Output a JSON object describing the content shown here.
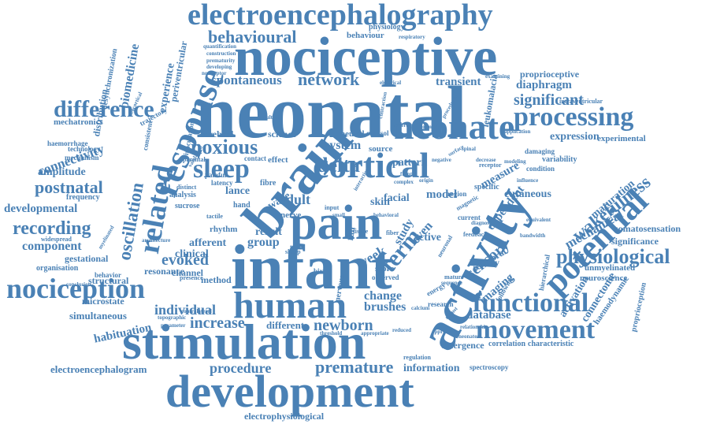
{
  "color": "#4a81b5",
  "words": [
    "electroencephalography",
    "nociceptive",
    "neonatal",
    "behavioural",
    "behaviour",
    "physiology",
    "respiratory",
    "quantification",
    "construction",
    "prematurity",
    "developing",
    "nociceptor",
    "periventricular",
    "desynchronization",
    "biomedicine",
    "experience",
    "response",
    "spontaneous",
    "network",
    "transient",
    "leukomalacia",
    "proprioceptive",
    "diaphragm",
    "significant",
    "intraventricular",
    "difference",
    "processing",
    "expression",
    "mechatronics",
    "distribution",
    "haemorrhage",
    "connectivity",
    "amplitude",
    "related",
    "sleep",
    "noxious",
    "cerebral",
    "science",
    "system",
    "brain",
    "neonate",
    "cortical",
    "delta",
    "pattern",
    "wakefulness",
    "maturation",
    "postnatal",
    "oscillation",
    "developmental",
    "frequency",
    "recording",
    "component",
    "gestational",
    "organisation",
    "nociception",
    "evoked",
    "clinical",
    "afferent",
    "resonance",
    "channel",
    "method",
    "pain",
    "infant",
    "human",
    "activity",
    "potential",
    "term",
    "sensory",
    "imaging",
    "mechanical",
    "physiological",
    "somatosensation",
    "significance",
    "activation",
    "connectome",
    "haemodynamic",
    "proprioception",
    "structural",
    "microstate",
    "simultaneous",
    "individual",
    "habituation",
    "increase",
    "different",
    "newborn",
    "brushes",
    "change",
    "database",
    "functional",
    "movement",
    "stimulation",
    "procedure",
    "premature",
    "information",
    "electroencephalogram",
    "development",
    "electrophysiological",
    "spectroscopy",
    "emergence",
    "correlation",
    "characteristic",
    "neuroscience",
    "unmyelinated",
    "experimental",
    "cutaneous",
    "measure",
    "variability",
    "dependent",
    "temporal",
    "healthy",
    "adult",
    "skin",
    "facial",
    "model",
    "region",
    "even",
    "active",
    "current",
    "study",
    "fibre",
    "wave",
    "lance",
    "hand",
    "nerve",
    "result",
    "group",
    "week",
    "score",
    "full",
    "rhythm",
    "tactile",
    "painful",
    "latency",
    "analysis",
    "sucrose",
    "distinct",
    "parental",
    "effect",
    "neural",
    "contact",
    "cortisol",
    "source",
    "mechanism",
    "technology",
    "consistent",
    "trajectory",
    "inoculation",
    "neocortical",
    "electrical",
    "multiple",
    "contraction",
    "severity",
    "primary",
    "procedural",
    "specific",
    "condition",
    "damaging",
    "application",
    "examining",
    "widespread",
    "conclusion",
    "behavior",
    "presence",
    "contralateral",
    "topographic",
    "parameter",
    "threshold",
    "appropriate",
    "regulation",
    "research",
    "energy",
    "nervous",
    "birth",
    "observed",
    "sharp",
    "touch",
    "myelinated",
    "architecture",
    "validation",
    "frontal",
    "origin",
    "input",
    "small",
    "fiber",
    "tissue",
    "magnetic",
    "feedback",
    "following",
    "neuronal",
    "mature",
    "hierarchical",
    "sequence",
    "bandwidth",
    "equivalent",
    "diagnosis",
    "receptor",
    "influence",
    "modeling",
    "decrease",
    "negative",
    "surface",
    "spinal",
    "complex",
    "interaction",
    "behavioral",
    "approach",
    "neonates",
    "relationship",
    "robust",
    "calcium",
    "reduced",
    "standard",
    "preterm"
  ]
}
